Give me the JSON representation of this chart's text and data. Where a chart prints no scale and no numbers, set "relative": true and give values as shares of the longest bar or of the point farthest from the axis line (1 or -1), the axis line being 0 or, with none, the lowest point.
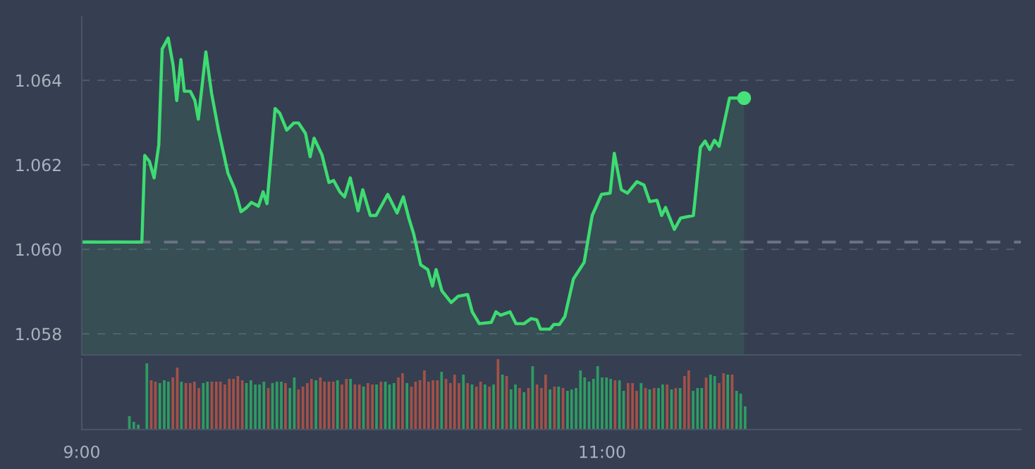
{
  "chart_data": [
    {
      "type": "area",
      "xlim": [
        9,
        12.61
      ],
      "ylim": [
        1.0575,
        1.0655
      ],
      "yticks": [
        1.058,
        {
          "value": 1.06,
          "label": "1.060"
        },
        1.062,
        1.064
      ],
      "tick_labels": "y",
      "grid": "y",
      "ref_lines": [
        {
          "axis": "y",
          "value": 1.06017,
          "line_style": "dashed",
          "color": "#6b7385"
        }
      ],
      "series": [
        {
          "color": "#3ddc71",
          "x": [
            9,
            9.231,
            9.242,
            9.26,
            9.278,
            9.296,
            9.309,
            9.332,
            9.351,
            9.365,
            9.381,
            9.394,
            9.417,
            9.435,
            9.448,
            9.477,
            9.499,
            9.526,
            9.562,
            9.589,
            9.612,
            9.634,
            9.652,
            9.679,
            9.697,
            9.712,
            9.743,
            9.761,
            9.788,
            9.815,
            9.833,
            9.86,
            9.878,
            9.893,
            9.923,
            9.95,
            9.968,
            9.992,
            10.01,
            10.032,
            10.062,
            10.08,
            10.109,
            10.131,
            10.176,
            10.212,
            10.236,
            10.257,
            10.276,
            10.303,
            10.33,
            10.348,
            10.362,
            10.384,
            10.42,
            10.447,
            10.483,
            10.501,
            10.528,
            10.574,
            10.592,
            10.61,
            10.646,
            10.669,
            10.7,
            10.727,
            10.749,
            10.763,
            10.8,
            10.814,
            10.836,
            10.857,
            10.89,
            10.908,
            10.931,
            10.962,
            10.998,
            11.031,
            11.047,
            11.074,
            11.098,
            11.134,
            11.161,
            11.183,
            11.211,
            11.229,
            11.244,
            11.278,
            11.302,
            11.351,
            11.378,
            11.396,
            11.414,
            11.432,
            11.45,
            11.49,
            11.546
          ],
          "values": [
            1.06017,
            1.06017,
            1.06222,
            1.06208,
            1.06169,
            1.06247,
            1.06474,
            1.065,
            1.06436,
            1.06352,
            1.06449,
            1.06374,
            1.06374,
            1.06352,
            1.06308,
            1.06467,
            1.06369,
            1.0628,
            1.0618,
            1.06141,
            1.06089,
            1.06099,
            1.06111,
            1.06102,
            1.06136,
            1.06108,
            1.06333,
            1.06322,
            1.06282,
            1.06299,
            1.06299,
            1.06274,
            1.06219,
            1.06263,
            1.06224,
            1.06158,
            1.06163,
            1.06136,
            1.06124,
            1.06169,
            1.06091,
            1.06141,
            1.0608,
            1.0608,
            1.0613,
            1.06086,
            1.06124,
            1.06074,
            1.06036,
            1.05963,
            1.05952,
            1.05913,
            1.05952,
            1.05902,
            1.05874,
            1.05889,
            1.05893,
            1.05852,
            1.05824,
            1.05827,
            1.05852,
            1.05844,
            1.05852,
            1.05824,
            1.05824,
            1.05836,
            1.05833,
            1.05811,
            1.05811,
            1.05822,
            1.05822,
            1.05841,
            1.0593,
            1.05947,
            1.05969,
            1.0608,
            1.0613,
            1.06133,
            1.06227,
            1.06141,
            1.06133,
            1.0616,
            1.06152,
            1.06113,
            1.06116,
            1.0608,
            1.06099,
            1.06047,
            1.06074,
            1.0608,
            1.06241,
            1.06256,
            1.06236,
            1.06258,
            1.06244,
            1.06358,
            1.06358
          ]
        },
        {
          "type": "scatter",
          "marker": "circle",
          "color": "#44e278",
          "x": [
            11.546
          ],
          "values": [
            1.06358
          ]
        }
      ]
    },
    {
      "type": "bar",
      "relative": true,
      "xlim": [
        9,
        12.61
      ],
      "xticks": [
        {
          "value": 9,
          "label": "9:00"
        },
        {
          "value": 11,
          "label": "11:00"
        }
      ],
      "tick_labels": "x",
      "x": [
        9.183,
        9.2,
        9.217,
        9.25,
        9.267,
        9.283,
        9.3,
        9.317,
        9.333,
        9.35,
        9.367,
        9.383,
        9.4,
        9.417,
        9.433,
        9.45,
        9.467,
        9.483,
        9.5,
        9.517,
        9.533,
        9.55,
        9.567,
        9.583,
        9.6,
        9.617,
        9.633,
        9.65,
        9.667,
        9.683,
        9.7,
        9.717,
        9.733,
        9.75,
        9.767,
        9.783,
        9.8,
        9.817,
        9.833,
        9.85,
        9.867,
        9.883,
        9.9,
        9.917,
        9.933,
        9.95,
        9.967,
        9.983,
        10,
        10.017,
        10.033,
        10.05,
        10.067,
        10.083,
        10.1,
        10.117,
        10.133,
        10.15,
        10.167,
        10.183,
        10.2,
        10.217,
        10.233,
        10.25,
        10.267,
        10.283,
        10.3,
        10.317,
        10.333,
        10.35,
        10.367,
        10.383,
        10.4,
        10.417,
        10.433,
        10.45,
        10.467,
        10.483,
        10.5,
        10.517,
        10.533,
        10.55,
        10.567,
        10.583,
        10.6,
        10.617,
        10.633,
        10.65,
        10.667,
        10.683,
        10.7,
        10.717,
        10.733,
        10.75,
        10.767,
        10.783,
        10.8,
        10.817,
        10.833,
        10.85,
        10.867,
        10.883,
        10.9,
        10.917,
        10.933,
        10.95,
        10.967,
        10.983,
        11,
        11.017,
        11.033,
        11.05,
        11.067,
        11.083,
        11.1,
        11.117,
        11.133,
        11.15,
        11.167,
        11.183,
        11.2,
        11.217,
        11.233,
        11.25,
        11.267,
        11.283,
        11.3,
        11.317,
        11.333,
        11.35,
        11.367,
        11.383,
        11.4,
        11.417,
        11.433,
        11.45,
        11.467,
        11.483,
        11.5,
        11.517,
        11.533,
        11.55
      ],
      "values": [
        0.19,
        0.11,
        0.07,
        0.94,
        0.7,
        0.68,
        0.66,
        0.7,
        0.68,
        0.74,
        0.88,
        0.68,
        0.66,
        0.66,
        0.68,
        0.59,
        0.66,
        0.68,
        0.68,
        0.68,
        0.68,
        0.64,
        0.72,
        0.72,
        0.76,
        0.7,
        0.66,
        0.7,
        0.64,
        0.64,
        0.68,
        0.59,
        0.66,
        0.68,
        0.68,
        0.66,
        0.59,
        0.74,
        0.57,
        0.61,
        0.66,
        0.72,
        0.7,
        0.74,
        0.68,
        0.68,
        0.68,
        0.7,
        0.64,
        0.72,
        0.72,
        0.64,
        0.64,
        0.61,
        0.66,
        0.64,
        0.64,
        0.68,
        0.68,
        0.64,
        0.66,
        0.74,
        0.8,
        0.66,
        0.61,
        0.68,
        0.7,
        0.84,
        0.68,
        0.7,
        0.7,
        0.82,
        0.72,
        0.66,
        0.78,
        0.66,
        0.78,
        0.66,
        0.64,
        0.61,
        0.68,
        0.64,
        0.61,
        0.64,
        1.0,
        0.78,
        0.76,
        0.57,
        0.64,
        0.59,
        0.53,
        0.59,
        0.9,
        0.64,
        0.59,
        0.78,
        0.57,
        0.61,
        0.61,
        0.59,
        0.55,
        0.57,
        0.59,
        0.84,
        0.74,
        0.68,
        0.72,
        0.9,
        0.74,
        0.74,
        0.72,
        0.7,
        0.7,
        0.55,
        0.66,
        0.66,
        0.55,
        0.66,
        0.59,
        0.57,
        0.59,
        0.59,
        0.64,
        0.64,
        0.57,
        0.59,
        0.59,
        0.76,
        0.84,
        0.55,
        0.59,
        0.59,
        0.74,
        0.78,
        0.76,
        0.66,
        0.8,
        0.78,
        0.78,
        0.55,
        0.51,
        0.33
      ],
      "colors": [
        "#2e9c62",
        "#2e9c62",
        "#2e9c62",
        "#2e9c62",
        "#a35148",
        "#a35148",
        "#2e9c62",
        "#2e9c62",
        "#2e9c62",
        "#a35148",
        "#a35148",
        "#2e9c62",
        "#a35148",
        "#a35148",
        "#a35148",
        "#a35148",
        "#2e9c62",
        "#2e9c62",
        "#a35148",
        "#a35148",
        "#a35148",
        "#a35148",
        "#a35148",
        "#a35148",
        "#a35148",
        "#a35148",
        "#2e9c62",
        "#2e9c62",
        "#2e9c62",
        "#2e9c62",
        "#2e9c62",
        "#a35148",
        "#2e9c62",
        "#2e9c62",
        "#2e9c62",
        "#a35148",
        "#2e9c62",
        "#2e9c62",
        "#a35148",
        "#a35148",
        "#a35148",
        "#a35148",
        "#2e9c62",
        "#a35148",
        "#a35148",
        "#a35148",
        "#a35148",
        "#2e9c62",
        "#a35148",
        "#a35148",
        "#2e9c62",
        "#a35148",
        "#a35148",
        "#2e9c62",
        "#a35148",
        "#a35148",
        "#2e9c62",
        "#a35148",
        "#2e9c62",
        "#2e9c62",
        "#2e9c62",
        "#a35148",
        "#a35148",
        "#2e9c62",
        "#a35148",
        "#a35148",
        "#a35148",
        "#a35148",
        "#a35148",
        "#a35148",
        "#a35148",
        "#2e9c62",
        "#a35148",
        "#a35148",
        "#a35148",
        "#a35148",
        "#2e9c62",
        "#a35148",
        "#2e9c62",
        "#a35148",
        "#a35148",
        "#2e9c62",
        "#a35148",
        "#2e9c62",
        "#a35148",
        "#2e9c62",
        "#a35148",
        "#2e9c62",
        "#2e9c62",
        "#a35148",
        "#2e9c62",
        "#a35148",
        "#2e9c62",
        "#a35148",
        "#a35148",
        "#a35148",
        "#2e9c62",
        "#a35148",
        "#2e9c62",
        "#a35148",
        "#2e9c62",
        "#2e9c62",
        "#2e9c62",
        "#2e9c62",
        "#2e9c62",
        "#2e9c62",
        "#2e9c62",
        "#2e9c62",
        "#2e9c62",
        "#2e9c62",
        "#2e9c62",
        "#a35148",
        "#2e9c62",
        "#2e9c62",
        "#a35148",
        "#a35148",
        "#a35148",
        "#2e9c62",
        "#a35148",
        "#2e9c62",
        "#a35148",
        "#2e9c62",
        "#2e9c62",
        "#a35148",
        "#2e9c62",
        "#a35148",
        "#2e9c62",
        "#a35148",
        "#a35148",
        "#2e9c62",
        "#2e9c62",
        "#2e9c62",
        "#a35148",
        "#2e9c62",
        "#2e9c62",
        "#a35148",
        "#a35148",
        "#2e9c62",
        "#a35148",
        "#2e9c62",
        "#2e9c62",
        "#2e9c62"
      ]
    }
  ]
}
